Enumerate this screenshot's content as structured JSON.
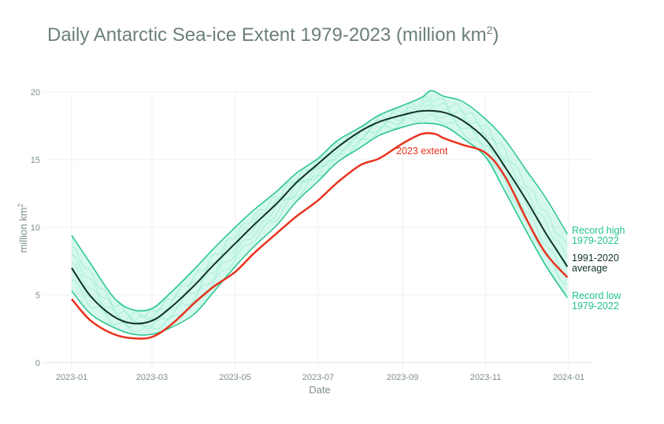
{
  "title": "Daily Antarctic Sea-ice Extent 1979-2023 (million km",
  "title_sup": "2",
  "title_close": ")",
  "chart_data": {
    "type": "line",
    "title": "Daily Antarctic Sea-ice Extent 1979-2023 (million km2)",
    "xlabel": "Date",
    "ylabel": "million km",
    "ylabel_sup": "2",
    "xlim": [
      "2023-01-01",
      "2024-01-01"
    ],
    "ylim": [
      0,
      20
    ],
    "grid": true,
    "x_ticks": [
      "2023-01",
      "2023-03",
      "2023-05",
      "2023-07",
      "2023-09",
      "2023-11",
      "2024-01"
    ],
    "y_ticks": [
      0,
      5,
      10,
      15,
      20
    ],
    "colors": {
      "record": "#22c48a",
      "average": "#113322",
      "extent_2023": "#e8321e",
      "historic_band": "#9ff0d8",
      "grid": "#eef2f1"
    },
    "series": [
      {
        "name": "Record high\n1979-2022",
        "label_lines": [
          "Record high",
          "1979-2022"
        ],
        "x": [
          "2023-01-01",
          "2023-01-15",
          "2023-02-01",
          "2023-02-15",
          "2023-03-01",
          "2023-03-15",
          "2023-04-01",
          "2023-04-15",
          "2023-05-01",
          "2023-05-15",
          "2023-06-01",
          "2023-06-15",
          "2023-07-01",
          "2023-07-15",
          "2023-08-01",
          "2023-08-15",
          "2023-09-01",
          "2023-09-15",
          "2023-09-22",
          "2023-10-01",
          "2023-10-15",
          "2023-11-01",
          "2023-11-15",
          "2023-12-01",
          "2023-12-15",
          "2023-12-31"
        ],
        "y": [
          9.4,
          7.3,
          4.8,
          3.9,
          4.0,
          5.2,
          6.9,
          8.4,
          10.0,
          11.3,
          12.7,
          14.0,
          15.1,
          16.4,
          17.4,
          18.3,
          19.0,
          19.6,
          20.1,
          19.7,
          19.3,
          18.0,
          16.5,
          14.2,
          12.2,
          9.5
        ]
      },
      {
        "name": "1991-2020\naverage",
        "label_lines": [
          "1991-2020",
          "average"
        ],
        "x": [
          "2023-01-01",
          "2023-01-15",
          "2023-02-01",
          "2023-02-15",
          "2023-03-01",
          "2023-03-15",
          "2023-04-01",
          "2023-04-15",
          "2023-05-01",
          "2023-05-15",
          "2023-06-01",
          "2023-06-15",
          "2023-07-01",
          "2023-07-15",
          "2023-08-01",
          "2023-08-15",
          "2023-09-01",
          "2023-09-15",
          "2023-10-01",
          "2023-10-15",
          "2023-11-01",
          "2023-11-15",
          "2023-12-01",
          "2023-12-15",
          "2023-12-31"
        ],
        "y": [
          7.0,
          4.9,
          3.4,
          2.9,
          3.1,
          4.1,
          5.7,
          7.2,
          8.8,
          10.2,
          11.8,
          13.3,
          14.7,
          15.9,
          17.1,
          17.8,
          18.3,
          18.6,
          18.5,
          17.9,
          16.5,
          14.5,
          12.0,
          9.6,
          7.1
        ]
      },
      {
        "name": "Record low\n1979-2022",
        "label_lines": [
          "Record low",
          "1979-2022"
        ],
        "x": [
          "2023-01-01",
          "2023-01-15",
          "2023-02-01",
          "2023-02-15",
          "2023-03-01",
          "2023-03-15",
          "2023-04-01",
          "2023-04-15",
          "2023-05-01",
          "2023-05-15",
          "2023-06-01",
          "2023-06-15",
          "2023-07-01",
          "2023-07-15",
          "2023-08-01",
          "2023-08-15",
          "2023-09-01",
          "2023-09-15",
          "2023-10-01",
          "2023-10-15",
          "2023-11-01",
          "2023-11-15",
          "2023-12-01",
          "2023-12-15",
          "2023-12-31"
        ],
        "y": [
          5.3,
          3.6,
          2.6,
          2.1,
          2.1,
          2.6,
          3.6,
          5.2,
          7.1,
          8.6,
          10.2,
          11.9,
          13.4,
          14.8,
          15.9,
          16.8,
          17.4,
          17.7,
          17.5,
          16.6,
          15.2,
          12.7,
          9.7,
          7.2,
          4.8
        ]
      },
      {
        "name": "2023 extent",
        "label_lines": [
          "2023 extent"
        ],
        "x": [
          "2023-01-01",
          "2023-01-15",
          "2023-02-01",
          "2023-02-15",
          "2023-03-01",
          "2023-03-15",
          "2023-04-01",
          "2023-04-15",
          "2023-05-01",
          "2023-05-15",
          "2023-06-01",
          "2023-06-15",
          "2023-07-01",
          "2023-07-15",
          "2023-08-01",
          "2023-08-15",
          "2023-09-01",
          "2023-09-15",
          "2023-09-25",
          "2023-10-01",
          "2023-10-15",
          "2023-11-01",
          "2023-11-15",
          "2023-12-01",
          "2023-12-15",
          "2023-12-31"
        ],
        "y": [
          4.7,
          3.1,
          2.1,
          1.8,
          1.9,
          2.8,
          4.4,
          5.6,
          6.7,
          8.1,
          9.6,
          10.8,
          12.0,
          13.3,
          14.6,
          15.1,
          16.2,
          16.9,
          16.9,
          16.6,
          16.1,
          15.5,
          13.8,
          10.6,
          8.1,
          6.3
        ]
      }
    ]
  }
}
